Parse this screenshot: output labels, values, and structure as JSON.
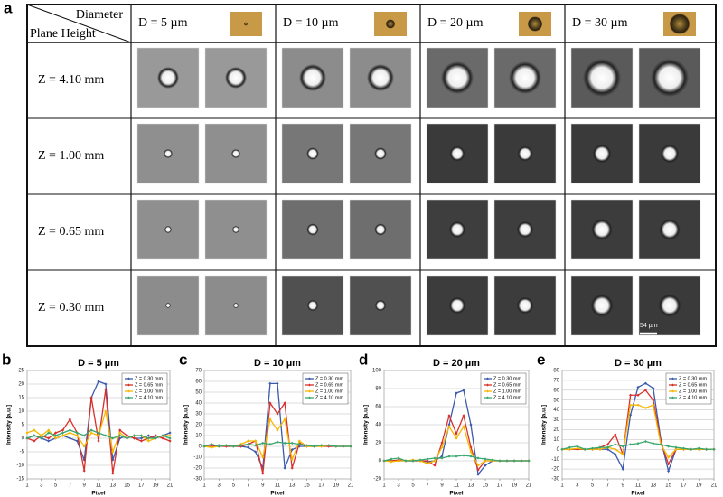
{
  "panels": [
    "a",
    "b",
    "c",
    "d",
    "e"
  ],
  "table": {
    "corner_top": "Diameter",
    "corner_bottom": "Plane Height",
    "columns": [
      "D = 5 µm",
      "D = 10 µm",
      "D = 20 µm",
      "D = 30 µm"
    ],
    "rows": [
      "Z = 4.10 mm",
      "Z = 1.00 mm",
      "Z = 0.65 mm",
      "Z = 0.30 mm"
    ],
    "scale_bar": "54 µm"
  },
  "chart_data": [
    {
      "type": "line",
      "title": "D = 5 µm",
      "x_label": "Pixel",
      "y_label": "Intensity [a.u.]",
      "x": [
        1,
        2,
        3,
        4,
        5,
        6,
        7,
        8,
        9,
        10,
        11,
        12,
        13,
        14,
        15,
        16,
        17,
        18,
        19,
        20,
        21
      ],
      "xlim": [
        1,
        21
      ],
      "xticks": [
        1,
        3,
        5,
        7,
        9,
        11,
        13,
        15,
        17,
        19,
        21
      ],
      "ylim": [
        -15,
        25
      ],
      "yticks": [
        -15,
        -10,
        -5,
        0,
        5,
        10,
        15,
        20,
        25
      ],
      "grid": true,
      "legend": "top-right",
      "series": [
        {
          "name": "Z = 0.30 mm",
          "color": "#3b5bab",
          "values": [
            0,
            1,
            0,
            -1,
            0,
            1,
            0,
            -1,
            -8,
            15,
            21,
            20,
            -8,
            0,
            1,
            0,
            0,
            1,
            0,
            1,
            2
          ]
        },
        {
          "name": "Z = 0.65 mm",
          "color": "#d9302c",
          "values": [
            0,
            -1,
            1,
            0,
            2,
            3,
            7,
            2,
            -12,
            15,
            -1,
            18,
            -13,
            3,
            1,
            0,
            -1,
            0,
            1,
            0,
            -1
          ]
        },
        {
          "name": "Z = 1.00 mm",
          "color": "#f5b800",
          "values": [
            2,
            3,
            1,
            3,
            0,
            1,
            2,
            1,
            -3,
            2,
            1,
            10,
            -5,
            2,
            0,
            1,
            1,
            -1,
            0,
            1,
            1
          ]
        },
        {
          "name": "Z = 4.10 mm",
          "color": "#3aa76d",
          "values": [
            0,
            1,
            0,
            2,
            1,
            2,
            3,
            2,
            1,
            3,
            2,
            1,
            0,
            1,
            0,
            1,
            1,
            0,
            0,
            1,
            0
          ]
        }
      ]
    },
    {
      "type": "line",
      "title": "D = 10 µm",
      "x_label": "Pixel",
      "y_label": "Intensity [a.u.]",
      "x": [
        1,
        2,
        3,
        4,
        5,
        6,
        7,
        8,
        9,
        10,
        11,
        12,
        13,
        14,
        15,
        16,
        17,
        18,
        19,
        20,
        21
      ],
      "xlim": [
        1,
        21
      ],
      "xticks": [
        1,
        3,
        5,
        7,
        9,
        11,
        13,
        15,
        17,
        19,
        21
      ],
      "ylim": [
        -30,
        70
      ],
      "yticks": [
        -30,
        -20,
        -10,
        0,
        10,
        20,
        30,
        40,
        50,
        60,
        70
      ],
      "grid": true,
      "legend": "top-right",
      "series": [
        {
          "name": "Z = 0.30 mm",
          "color": "#3b5bab",
          "values": [
            0,
            0,
            1,
            0,
            0,
            0,
            -1,
            -5,
            -20,
            58,
            58,
            -20,
            -3,
            0,
            0,
            0,
            1,
            0,
            0,
            0,
            0
          ]
        },
        {
          "name": "Z = 0.65 mm",
          "color": "#d9302c",
          "values": [
            0,
            0,
            0,
            0,
            0,
            0,
            2,
            5,
            -25,
            40,
            30,
            40,
            -20,
            3,
            0,
            0,
            0,
            0,
            0,
            0,
            0
          ]
        },
        {
          "name": "Z = 1.00 mm",
          "color": "#f5b800",
          "values": [
            0,
            -1,
            0,
            1,
            0,
            2,
            5,
            5,
            -10,
            25,
            15,
            25,
            -12,
            5,
            0,
            0,
            0,
            1,
            0,
            0,
            0
          ]
        },
        {
          "name": "Z = 4.10 mm",
          "color": "#3aa76d",
          "values": [
            0,
            2,
            0,
            1,
            0,
            1,
            2,
            1,
            3,
            2,
            4,
            3,
            3,
            2,
            1,
            0,
            1,
            1,
            0,
            0,
            0
          ]
        }
      ]
    },
    {
      "type": "line",
      "title": "D = 20 µm",
      "x_label": "Pixel",
      "y_label": "Intensity [a.u.]",
      "x": [
        1,
        2,
        3,
        4,
        5,
        6,
        7,
        8,
        9,
        10,
        11,
        12,
        13,
        14,
        15,
        16,
        17,
        18,
        19,
        20,
        21
      ],
      "xlim": [
        1,
        21
      ],
      "xticks": [
        1,
        3,
        5,
        7,
        9,
        11,
        13,
        15,
        17,
        19,
        21
      ],
      "ylim": [
        -20,
        100
      ],
      "yticks": [
        -20,
        0,
        20,
        40,
        60,
        80,
        100
      ],
      "grid": true,
      "legend": "top-right",
      "series": [
        {
          "name": "Z = 0.30 mm",
          "color": "#3b5bab",
          "values": [
            0,
            0,
            0,
            0,
            0,
            0,
            -1,
            0,
            5,
            40,
            75,
            78,
            40,
            -15,
            -5,
            0,
            0,
            0,
            0,
            0,
            0
          ]
        },
        {
          "name": "Z = 0.65 mm",
          "color": "#d9302c",
          "values": [
            0,
            0,
            1,
            0,
            0,
            0,
            0,
            -5,
            20,
            50,
            30,
            50,
            15,
            -10,
            0,
            0,
            0,
            0,
            0,
            0,
            0
          ]
        },
        {
          "name": "Z = 1.00 mm",
          "color": "#f5b800",
          "values": [
            0,
            -1,
            0,
            0,
            1,
            0,
            -3,
            0,
            15,
            38,
            25,
            38,
            10,
            -5,
            0,
            0,
            0,
            0,
            0,
            0,
            0
          ]
        },
        {
          "name": "Z = 4.10 mm",
          "color": "#3aa76d",
          "values": [
            0,
            2,
            3,
            0,
            0,
            1,
            2,
            3,
            3,
            5,
            5,
            6,
            5,
            3,
            2,
            1,
            0,
            0,
            0,
            0,
            0
          ]
        }
      ]
    },
    {
      "type": "line",
      "title": "D = 30 µm",
      "x_label": "Pixel",
      "y_label": "Intensity [a.u.]",
      "x": [
        1,
        2,
        3,
        4,
        5,
        6,
        7,
        8,
        9,
        10,
        11,
        12,
        13,
        14,
        15,
        16,
        17,
        18,
        19,
        20,
        21
      ],
      "xlim": [
        1,
        21
      ],
      "xticks": [
        1,
        3,
        5,
        7,
        9,
        11,
        13,
        15,
        17,
        19,
        21
      ],
      "ylim": [
        -30,
        80
      ],
      "yticks": [
        -30,
        -20,
        -10,
        0,
        10,
        20,
        30,
        40,
        50,
        60,
        70,
        80
      ],
      "grid": true,
      "legend": "top-right",
      "series": [
        {
          "name": "Z = 0.30 mm",
          "color": "#3b5bab",
          "values": [
            0,
            0,
            0,
            0,
            0,
            0,
            0,
            -5,
            -20,
            35,
            63,
            67,
            62,
            10,
            -22,
            0,
            0,
            0,
            0,
            0,
            0
          ]
        },
        {
          "name": "Z = 0.65 mm",
          "color": "#d9302c",
          "values": [
            0,
            0,
            0,
            0,
            0,
            2,
            5,
            15,
            -5,
            55,
            55,
            60,
            50,
            8,
            -15,
            0,
            0,
            0,
            0,
            0,
            0
          ]
        },
        {
          "name": "Z = 1.00 mm",
          "color": "#f5b800",
          "values": [
            0,
            0,
            1,
            0,
            0,
            0,
            2,
            0,
            -5,
            45,
            45,
            42,
            45,
            5,
            -8,
            0,
            0,
            0,
            0,
            0,
            0
          ]
        },
        {
          "name": "Z = 4.10 mm",
          "color": "#3aa76d",
          "values": [
            0,
            2,
            3,
            0,
            1,
            2,
            2,
            5,
            3,
            5,
            6,
            8,
            6,
            5,
            3,
            2,
            1,
            0,
            1,
            0,
            0
          ]
        }
      ]
    }
  ]
}
